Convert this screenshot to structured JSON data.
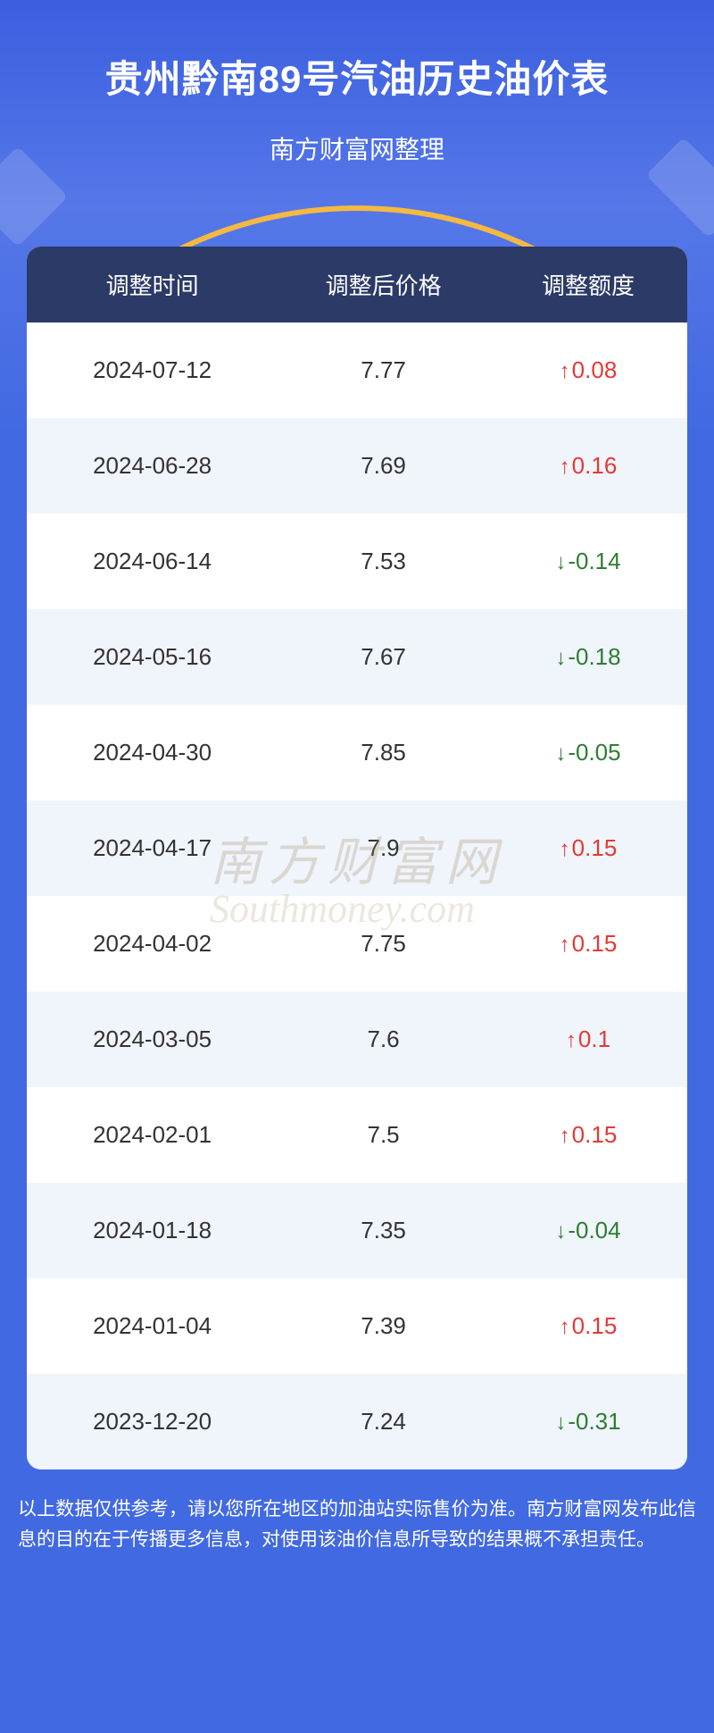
{
  "header": {
    "title": "贵州黔南89号汽油历史油价表",
    "subtitle": "南方财富网整理"
  },
  "table": {
    "columns": {
      "date": "调整时间",
      "price": "调整后价格",
      "change": "调整额度"
    },
    "rows": [
      {
        "date": "2024-07-12",
        "price": "7.77",
        "change": "0.08",
        "direction": "up"
      },
      {
        "date": "2024-06-28",
        "price": "7.69",
        "change": "0.16",
        "direction": "up"
      },
      {
        "date": "2024-06-14",
        "price": "7.53",
        "change": "-0.14",
        "direction": "down"
      },
      {
        "date": "2024-05-16",
        "price": "7.67",
        "change": "-0.18",
        "direction": "down"
      },
      {
        "date": "2024-04-30",
        "price": "7.85",
        "change": "-0.05",
        "direction": "down"
      },
      {
        "date": "2024-04-17",
        "price": "7.9",
        "change": "0.15",
        "direction": "up"
      },
      {
        "date": "2024-04-02",
        "price": "7.75",
        "change": "0.15",
        "direction": "up"
      },
      {
        "date": "2024-03-05",
        "price": "7.6",
        "change": "0.1",
        "direction": "up"
      },
      {
        "date": "2024-02-01",
        "price": "7.5",
        "change": "0.15",
        "direction": "up"
      },
      {
        "date": "2024-01-18",
        "price": "7.35",
        "change": "-0.04",
        "direction": "down"
      },
      {
        "date": "2024-01-04",
        "price": "7.39",
        "change": "0.15",
        "direction": "up"
      },
      {
        "date": "2023-12-20",
        "price": "7.24",
        "change": "-0.31",
        "direction": "down"
      }
    ]
  },
  "watermark": {
    "cn": "南方财富网",
    "en": "Southmoney.com",
    "cn_color": "rgba(160, 140, 100, 0.28)",
    "en_color": "rgba(180, 160, 120, 0.25)"
  },
  "disclaimer": "以上数据仅供参考，请以您所在地区的加油站实际售价为准。南方财富网发布此信息的目的在于传播更多信息，对使用该油价信息所导致的结果概不承担责任。",
  "colors": {
    "bg_gradient_start": "#3B5FE0",
    "bg_gradient_end": "#4169E1",
    "header_bg": "#2B3A67",
    "row_odd": "#F0F4FB",
    "row_even": "#FFFFFF",
    "up_color": "#E53935",
    "down_color": "#2E7D32",
    "arc_color": "#F5B942"
  },
  "icons": {
    "up_arrow": "↑",
    "down_arrow": "↓"
  }
}
